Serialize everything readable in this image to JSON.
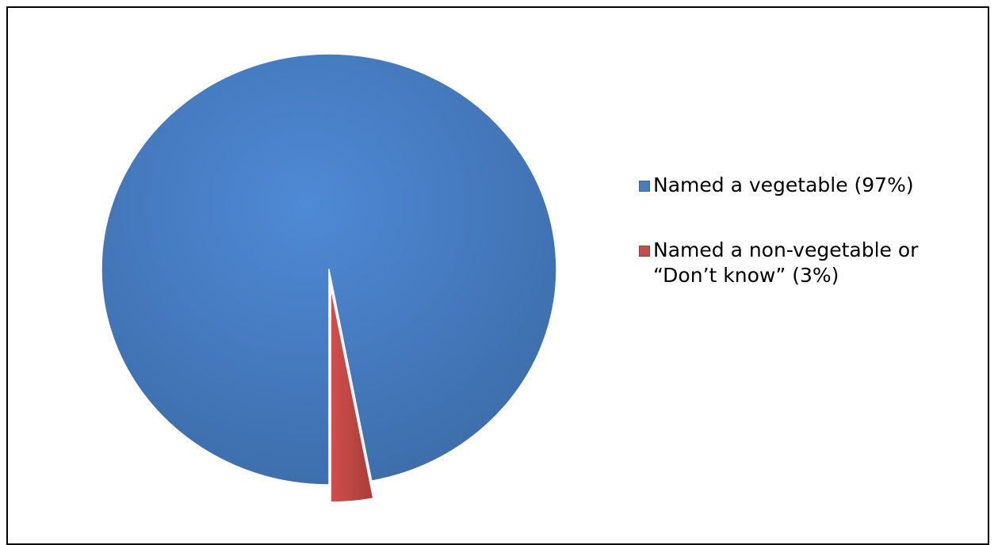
{
  "chart_data": {
    "type": "pie",
    "categories": [
      "Named a vegetable (97%)",
      "Named a non-vegetable or “Don’t know” (3%)"
    ],
    "values": [
      97,
      3
    ],
    "colors": [
      "#4a7ebb",
      "#c0504d"
    ],
    "legend": "right"
  }
}
